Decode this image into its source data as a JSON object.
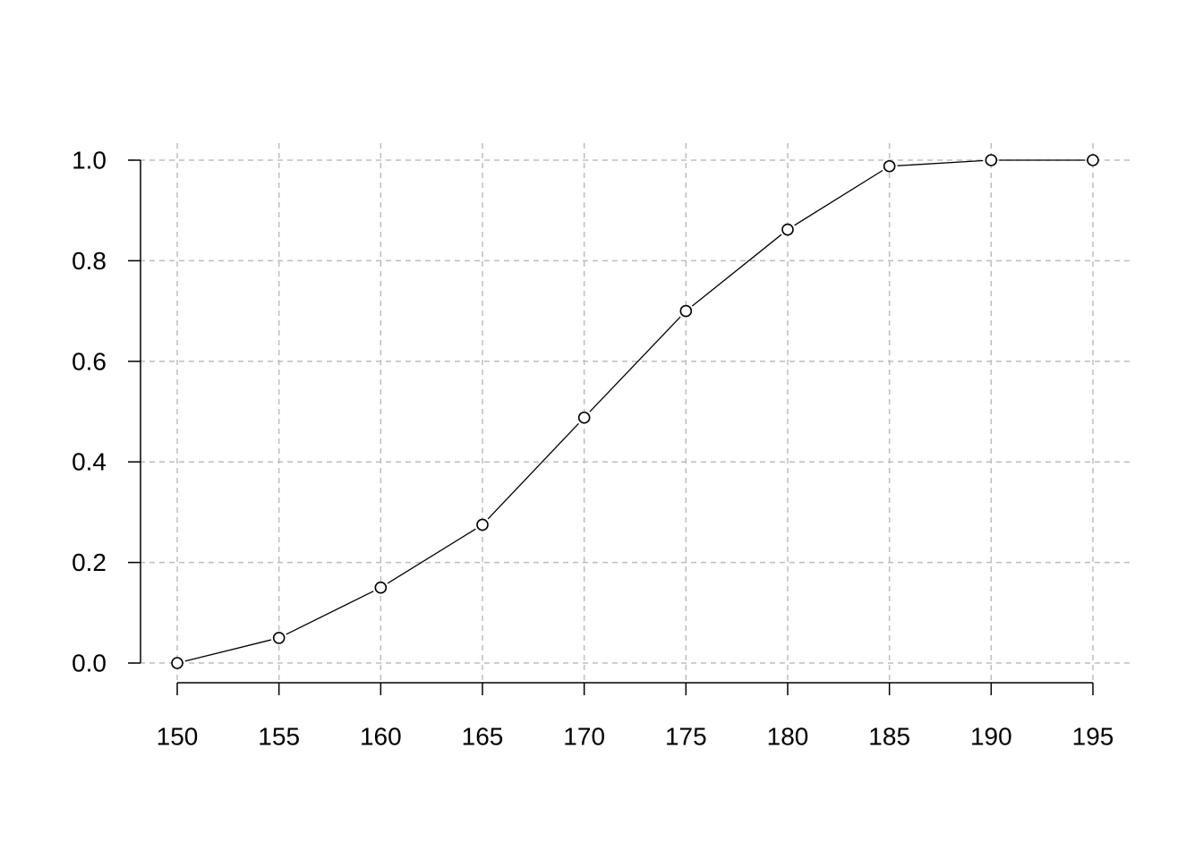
{
  "chart_data": {
    "type": "line",
    "title": "",
    "xlabel": "",
    "ylabel": "",
    "x": [
      150,
      155,
      160,
      165,
      170,
      175,
      180,
      185,
      190,
      195
    ],
    "series": [
      {
        "values": [
          0.0,
          0.05,
          0.15,
          0.275,
          0.488,
          0.7,
          0.862,
          0.988,
          1.0,
          1.0
        ]
      }
    ],
    "xlim": [
      150,
      195
    ],
    "ylim": [
      0,
      1
    ],
    "x_ticks": [
      "150",
      "155",
      "160",
      "165",
      "170",
      "175",
      "180",
      "185",
      "190",
      "195"
    ],
    "y_ticks": [
      "0.0",
      "0.2",
      "0.4",
      "0.6",
      "0.8",
      "1.0"
    ],
    "grid": true,
    "line_color": "#000000",
    "marker": "open-circle",
    "grid_color": "#bdbdbd"
  }
}
